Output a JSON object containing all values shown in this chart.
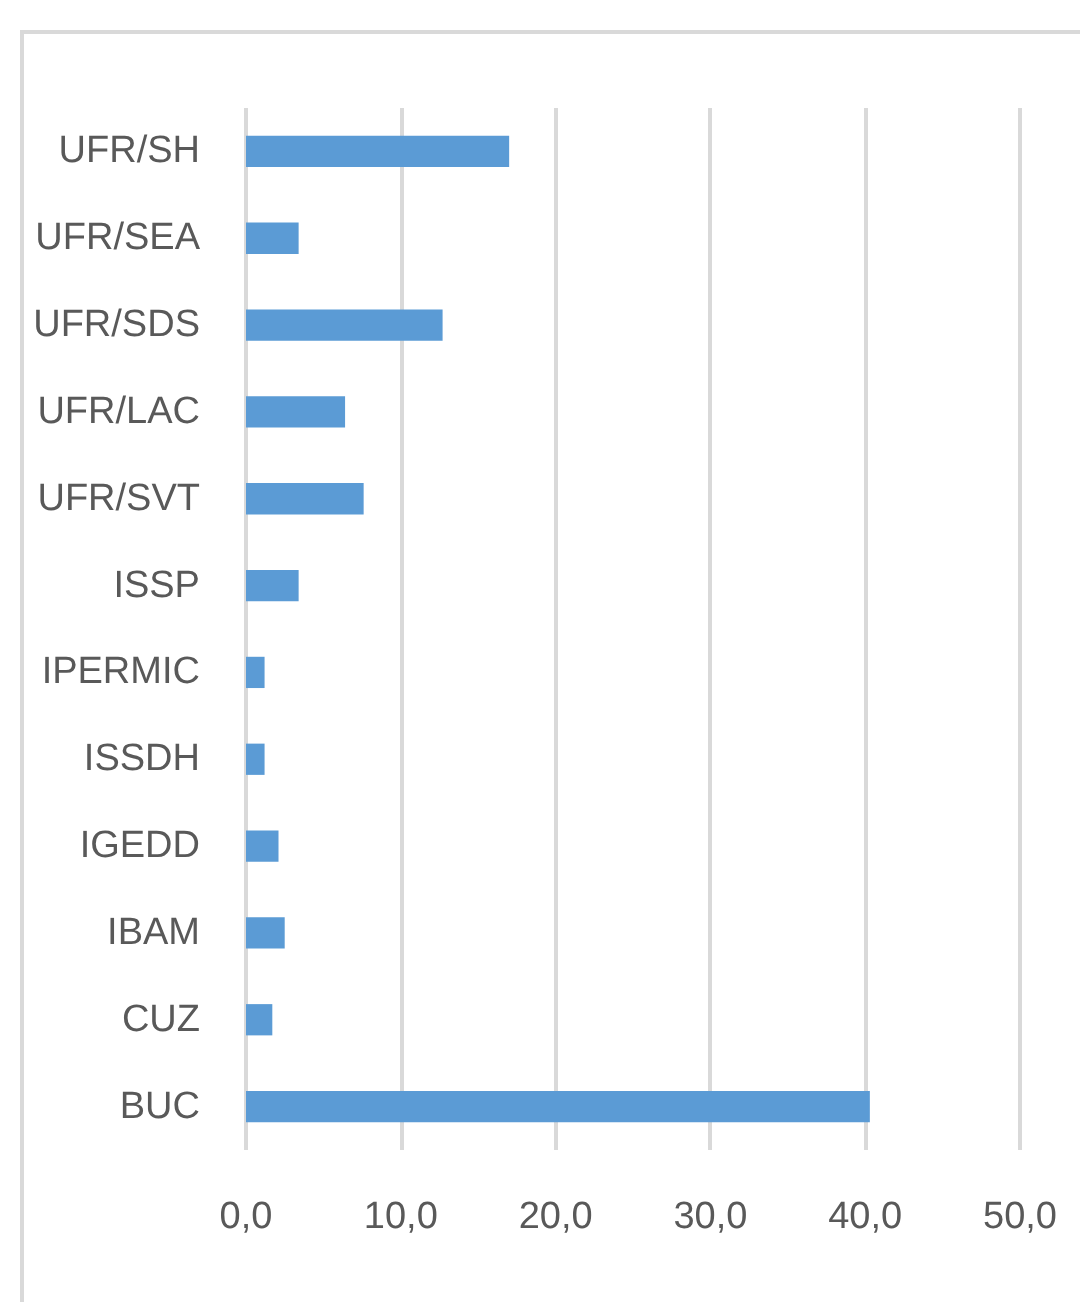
{
  "chart_data": {
    "type": "bar",
    "orientation": "horizontal",
    "categories": [
      "UFR/SH",
      "UFR/SEA",
      "UFR/SDS",
      "UFR/LAC",
      "UFR/SVT",
      "ISSP",
      "IPERMIC",
      "ISSDH",
      "IGEDD",
      "IBAM",
      "CUZ",
      "BUC"
    ],
    "values": [
      17.0,
      3.4,
      12.7,
      6.4,
      7.6,
      3.4,
      1.2,
      1.2,
      2.1,
      2.5,
      1.7,
      40.3
    ],
    "color": "#5b9bd5",
    "xlim": [
      0,
      50
    ],
    "xticks": [
      {
        "value": 0,
        "label": "0,0"
      },
      {
        "value": 10,
        "label": "10,0"
      },
      {
        "value": 20,
        "label": "20,0"
      },
      {
        "value": 30,
        "label": "30,0"
      },
      {
        "value": 40,
        "label": "40,0"
      },
      {
        "value": 50,
        "label": "50,0"
      }
    ],
    "grid": "x"
  }
}
